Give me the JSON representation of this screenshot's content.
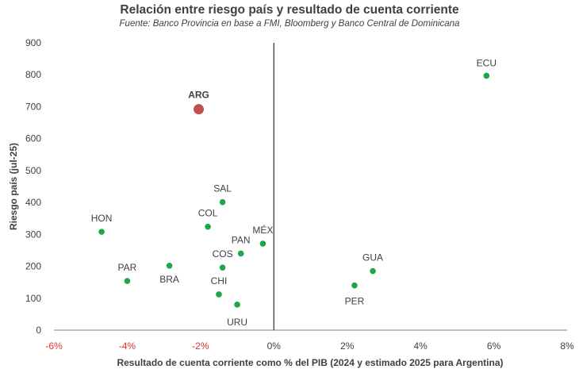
{
  "chart_data": {
    "type": "scatter",
    "title": "Relación entre riesgo país y resultado de cuenta corriente",
    "subtitle": "Fuente: Banco Provincia en base a FMI, Bloomberg y Banco Central de Dominicana",
    "xlabel": "Resultado de cuenta corriente como % del PIB (2024 y estimado 2025 para Argentina)",
    "ylabel": "Riesgo país (jul-25)",
    "xlim": [
      -6,
      8
    ],
    "ylim": [
      0,
      900
    ],
    "x_ticks": [
      "-6%",
      "-4%",
      "-2%",
      "0%",
      "2%",
      "4%",
      "6%",
      "8%"
    ],
    "y_ticks": [
      "0",
      "100",
      "200",
      "300",
      "400",
      "500",
      "600",
      "700",
      "800",
      "900"
    ],
    "grid": false,
    "points": [
      {
        "label": "ECU",
        "x": 5.8,
        "y": 797
      },
      {
        "label": "ARG",
        "x": -2.05,
        "y": 692,
        "highlight": true
      },
      {
        "label": "SAL",
        "x": -1.4,
        "y": 401
      },
      {
        "label": "COL",
        "x": -1.8,
        "y": 324
      },
      {
        "label": "HON",
        "x": -4.7,
        "y": 308
      },
      {
        "label": "MÉX",
        "x": -0.3,
        "y": 271
      },
      {
        "label": "PAN",
        "x": -0.9,
        "y": 240
      },
      {
        "label": "COS",
        "x": -1.4,
        "y": 196
      },
      {
        "label": "PAR",
        "x": -4.0,
        "y": 154
      },
      {
        "label": "BRA",
        "x": -2.85,
        "y": 202
      },
      {
        "label": "CHI",
        "x": -1.5,
        "y": 112
      },
      {
        "label": "URU",
        "x": -1.0,
        "y": 80
      },
      {
        "label": "GUA",
        "x": 2.7,
        "y": 185
      },
      {
        "label": "PER",
        "x": 2.2,
        "y": 140
      }
    ],
    "colors": {
      "point": "#1fa64a",
      "highlight": "#c0504d",
      "negative_tick": "#e03030",
      "text": "#404040"
    }
  }
}
